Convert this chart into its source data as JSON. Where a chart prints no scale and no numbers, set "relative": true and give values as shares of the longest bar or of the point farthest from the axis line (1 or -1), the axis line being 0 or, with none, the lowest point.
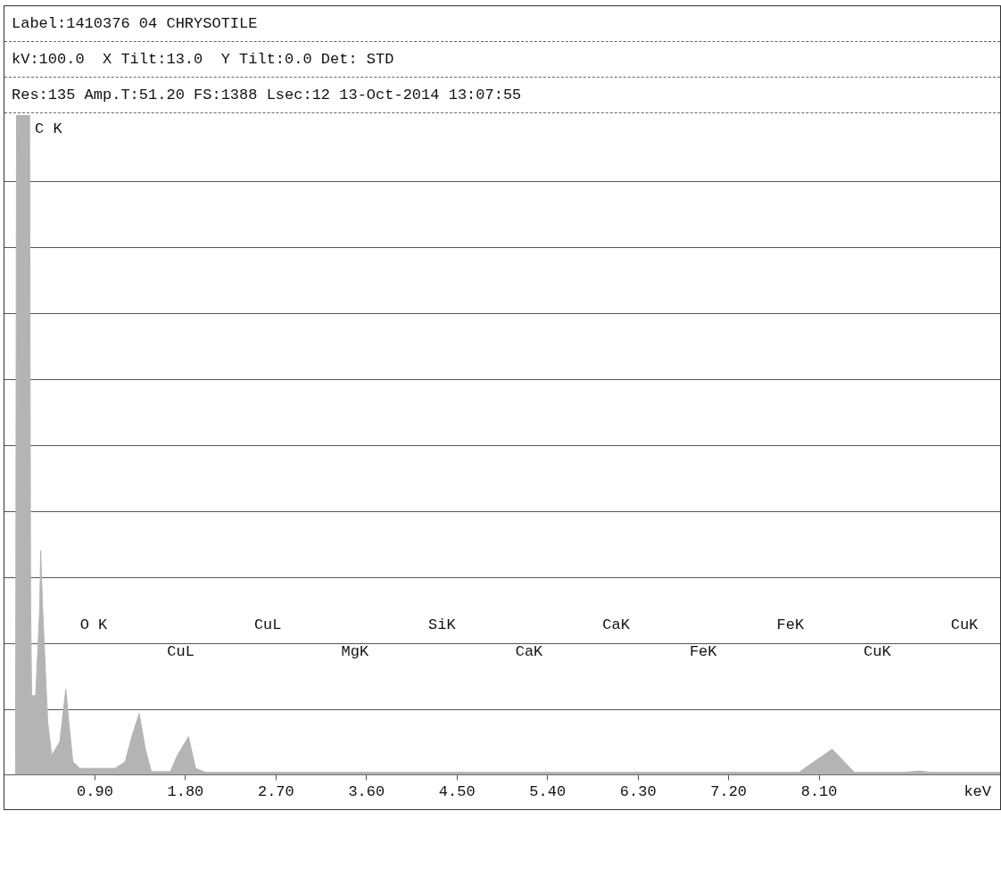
{
  "chart_data": {
    "type": "area",
    "title": "Label:1410376 04 CHRYSOTILE",
    "subtitle": "kV:100.0  X Tilt:13.0  Y Tilt:0.0 Det: STD",
    "xlabel": "keV",
    "relative": true,
    "grid": "y",
    "tick_labels": "x",
    "xlim": [
      0,
      9.9
    ],
    "xticks": [
      {
        "value": 0.9,
        "label": "0.90"
      },
      {
        "value": 1.8,
        "label": "1.80"
      },
      {
        "value": 2.7,
        "label": "2.70"
      },
      {
        "value": 3.6,
        "label": "3.60"
      },
      {
        "value": 4.5,
        "label": "4.50"
      },
      {
        "value": 5.4,
        "label": "5.40"
      },
      {
        "value": 6.3,
        "label": "6.30"
      },
      {
        "value": 7.2,
        "label": "7.20"
      },
      {
        "value": 8.1,
        "label": "8.10"
      }
    ],
    "series": [
      {
        "color": "#b4b4b4",
        "x": [
          0.11,
          0.12,
          0.25,
          0.26,
          0.27,
          0.31,
          0.35,
          0.36,
          0.38,
          0.43,
          0.47,
          0.55,
          0.61,
          0.64,
          0.68,
          0.75,
          0.9,
          1.1,
          1.2,
          1.27,
          1.34,
          1.4,
          1.46,
          1.65,
          1.72,
          1.83,
          1.9,
          2.0,
          7.9,
          8.05,
          8.23,
          8.35,
          8.45,
          8.95,
          9.1,
          9.2,
          9.9
        ],
        "values": [
          0,
          1,
          1,
          0.26,
          0.12,
          0.12,
          0.25,
          0.34,
          0.25,
          0.08,
          0.03,
          0.05,
          0.13,
          0.08,
          0.02,
          0.01,
          0.01,
          0.01,
          0.02,
          0.06,
          0.093,
          0.04,
          0.005,
          0.005,
          0.03,
          0.058,
          0.01,
          0.004,
          0.004,
          0.02,
          0.039,
          0.02,
          0.004,
          0.004,
          0.006,
          0.004,
          0.004
        ]
      }
    ],
    "annotations": [
      "Res:135 Amp.T:51.20 FS:1388 Lsec:12 13-Oct-2014 13:07:55",
      "C K",
      "O K",
      "CuL",
      "CuL",
      "MgK",
      "SiK",
      "CaK",
      "CaK",
      "FeK",
      "FeK",
      "CuK",
      "CuK"
    ]
  }
}
